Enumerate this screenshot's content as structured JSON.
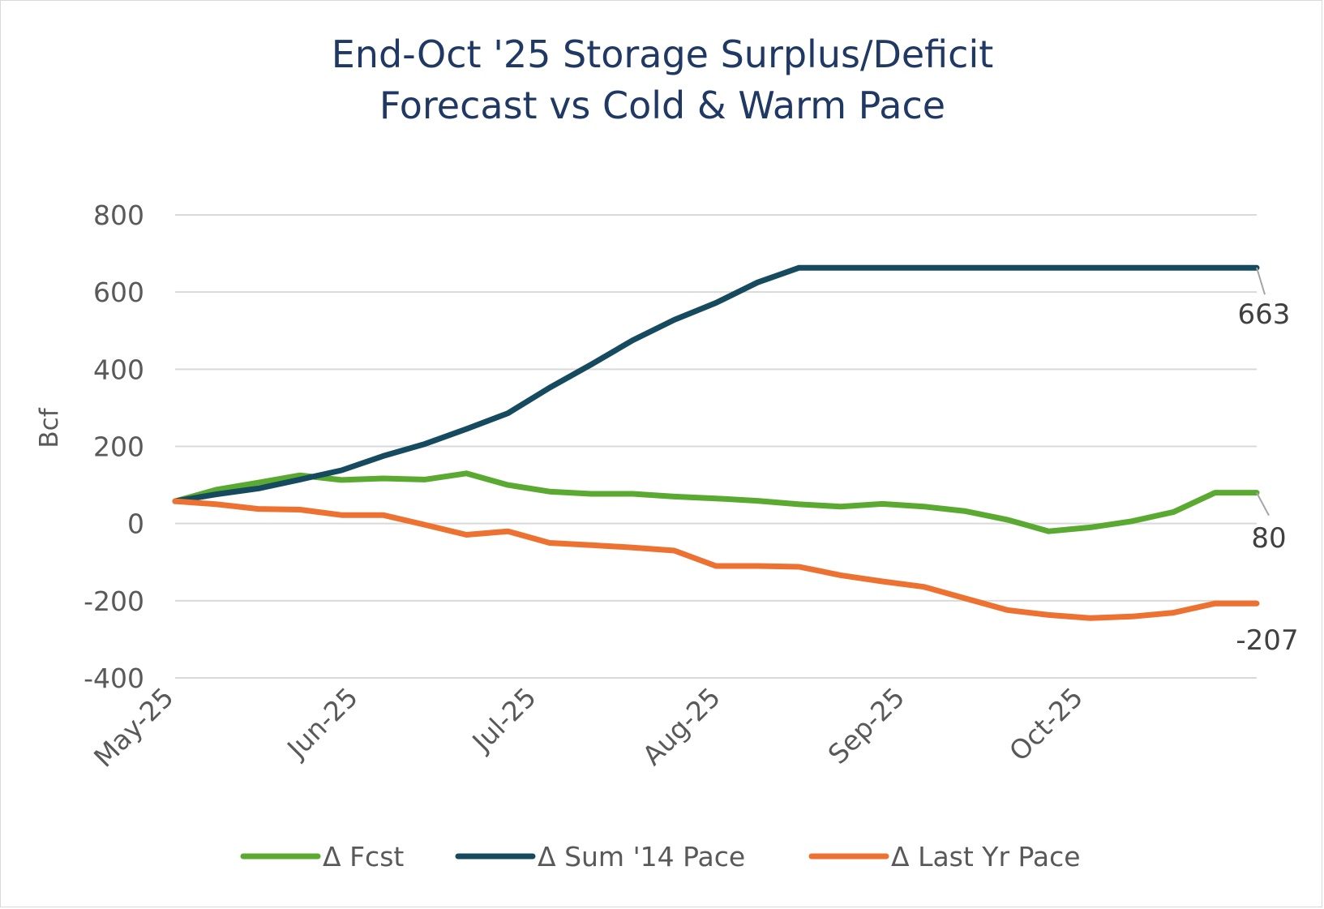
{
  "chart_data": {
    "type": "line",
    "title_lines": [
      "End-Oct '25 Storage Surplus/Deficit",
      "Forecast vs Cold & Warm Pace"
    ],
    "ylabel": "Bcf",
    "xlabel": "",
    "ylim": [
      -400,
      800
    ],
    "y_ticks": [
      800,
      600,
      400,
      200,
      0,
      -200,
      -400
    ],
    "grid": "horizontal",
    "legend_position": "bottom",
    "x_start": "2025-05-01",
    "x_tick_labels": [
      {
        "label": "May-25",
        "date": "2025-05-01"
      },
      {
        "label": "Jun-25",
        "date": "2025-06-01"
      },
      {
        "label": "Jul-25",
        "date": "2025-07-01"
      },
      {
        "label": "Aug-25",
        "date": "2025-08-01"
      },
      {
        "label": "Sep-25",
        "date": "2025-09-01"
      },
      {
        "label": "Oct-25",
        "date": "2025-10-01"
      }
    ],
    "x": [
      "2025-05-01",
      "2025-05-08",
      "2025-05-15",
      "2025-05-22",
      "2025-05-29",
      "2025-06-05",
      "2025-06-12",
      "2025-06-19",
      "2025-06-26",
      "2025-07-03",
      "2025-07-10",
      "2025-07-17",
      "2025-07-24",
      "2025-07-31",
      "2025-08-07",
      "2025-08-14",
      "2025-08-21",
      "2025-08-28",
      "2025-09-04",
      "2025-09-11",
      "2025-09-18",
      "2025-09-25",
      "2025-10-02",
      "2025-10-09",
      "2025-10-16",
      "2025-10-23",
      "2025-10-30"
    ],
    "series": [
      {
        "name": "Δ Fcst",
        "color": "#5aaa32",
        "values": [
          58,
          88,
          106,
          125,
          113,
          117,
          114,
          130,
          100,
          83,
          77,
          77,
          70,
          65,
          59,
          50,
          44,
          51,
          44,
          32,
          10,
          -20,
          -10,
          6,
          30,
          80,
          80
        ],
        "end_label": "80"
      },
      {
        "name": "Δ Sum '14 Pace",
        "color": "#164a5e",
        "values": [
          58,
          76,
          91,
          114,
          138,
          175,
          206,
          245,
          286,
          352,
          412,
          475,
          528,
          572,
          625,
          663,
          663,
          663,
          663,
          663,
          663,
          663,
          663,
          663,
          663,
          663,
          663
        ],
        "end_label": "663"
      },
      {
        "name": "Δ Last Yr Pace",
        "color": "#ed7232",
        "values": [
          58,
          50,
          38,
          36,
          22,
          22,
          -3,
          -29,
          -20,
          -50,
          -56,
          -62,
          -70,
          -110,
          -110,
          -112,
          -134,
          -150,
          -164,
          -194,
          -224,
          -237,
          -245,
          -241,
          -231,
          -207,
          -207
        ],
        "end_label": "-207"
      }
    ]
  }
}
